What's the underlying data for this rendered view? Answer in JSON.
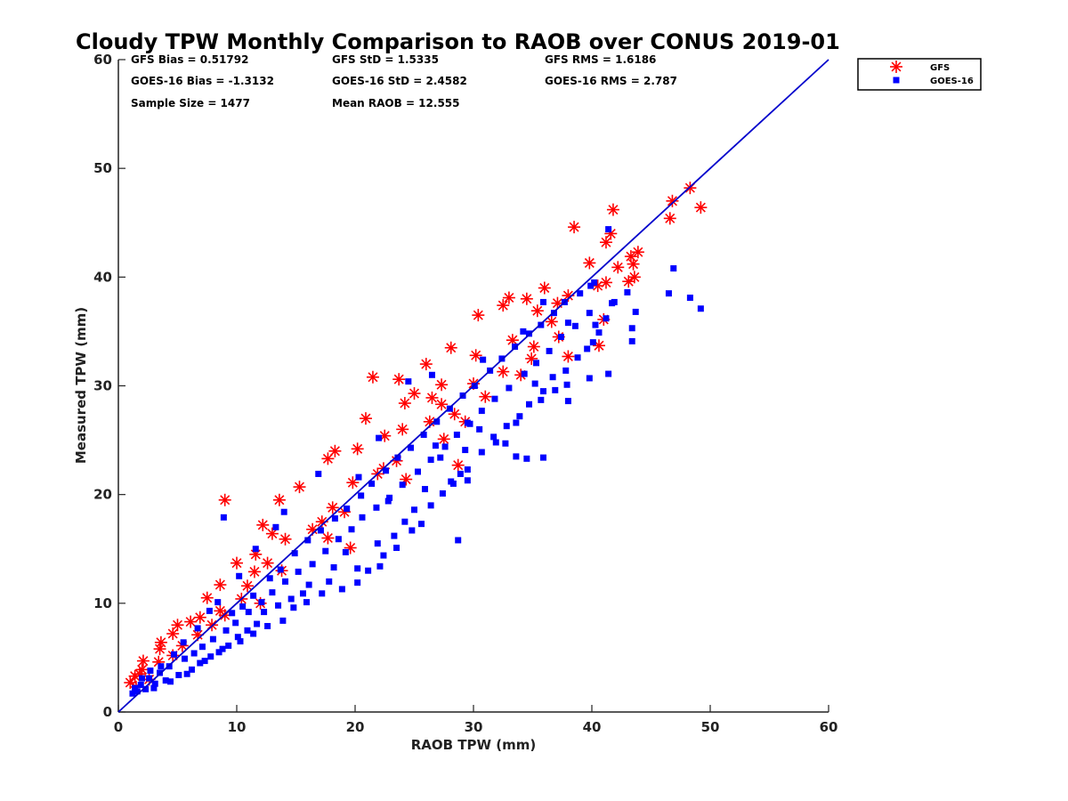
{
  "chart_data": {
    "type": "scatter",
    "title": "Cloudy TPW Monthly Comparison to RAOB over CONUS 2019-01",
    "xlabel": "RAOB TPW (mm)",
    "ylabel": "Measured TPW (mm)",
    "xlim": [
      0,
      60
    ],
    "ylim": [
      0,
      60
    ],
    "xticks": [
      "0",
      "10",
      "20",
      "30",
      "40",
      "50",
      "60"
    ],
    "yticks": [
      "0",
      "10",
      "20",
      "30",
      "40",
      "50",
      "60"
    ],
    "grid": false,
    "legend_position": "top-right",
    "stats": {
      "gfs_bias": "GFS Bias = 0.51792",
      "gfs_std": "GFS StD = 1.5335",
      "gfs_rms": "GFS RMS = 1.6186",
      "goes_bias": "GOES-16 Bias = -1.3132",
      "goes_std": "GOES-16 StD = 2.4582",
      "goes_rms": "GOES-16 RMS = 2.787",
      "sample_size": "Sample Size = 1477",
      "mean_raob": "Mean RAOB = 12.555"
    },
    "reference_line": {
      "label": "1:1 line",
      "color": "#0000cc",
      "x": [
        0,
        60
      ],
      "y": [
        0,
        60
      ]
    },
    "series": [
      {
        "name": "GFS",
        "marker": "asterisk",
        "color": "#ff0000",
        "points": [
          [
            48.3,
            48.2
          ],
          [
            46.8,
            47.0
          ],
          [
            46.6,
            45.4
          ],
          [
            49.2,
            46.4
          ],
          [
            41.8,
            46.2
          ],
          [
            38.5,
            44.6
          ],
          [
            41.6,
            44.0
          ],
          [
            41.2,
            43.2
          ],
          [
            43.9,
            42.3
          ],
          [
            43.3,
            41.9
          ],
          [
            39.8,
            41.3
          ],
          [
            43.5,
            41.2
          ],
          [
            42.2,
            40.9
          ],
          [
            43.6,
            40.0
          ],
          [
            41.2,
            39.5
          ],
          [
            40.5,
            39.2
          ],
          [
            43.1,
            39.6
          ],
          [
            36.0,
            39.0
          ],
          [
            38.0,
            38.3
          ],
          [
            33.0,
            38.1
          ],
          [
            34.5,
            38.0
          ],
          [
            32.5,
            37.4
          ],
          [
            37.1,
            37.6
          ],
          [
            35.4,
            36.9
          ],
          [
            30.4,
            36.5
          ],
          [
            36.6,
            35.9
          ],
          [
            41.0,
            36.1
          ],
          [
            37.2,
            34.5
          ],
          [
            33.3,
            34.2
          ],
          [
            35.1,
            33.6
          ],
          [
            40.6,
            33.7
          ],
          [
            38.0,
            32.7
          ],
          [
            28.1,
            33.5
          ],
          [
            30.2,
            32.8
          ],
          [
            34.9,
            32.5
          ],
          [
            26.0,
            32.0
          ],
          [
            32.5,
            31.3
          ],
          [
            34.0,
            31.0
          ],
          [
            23.7,
            30.6
          ],
          [
            21.5,
            30.8
          ],
          [
            27.3,
            30.1
          ],
          [
            30.0,
            30.2
          ],
          [
            24.2,
            28.4
          ],
          [
            25.0,
            29.3
          ],
          [
            31.0,
            29.0
          ],
          [
            26.5,
            28.9
          ],
          [
            27.3,
            28.3
          ],
          [
            28.4,
            27.4
          ],
          [
            29.3,
            26.7
          ],
          [
            20.9,
            27.0
          ],
          [
            26.3,
            26.7
          ],
          [
            24.0,
            26.0
          ],
          [
            22.5,
            25.4
          ],
          [
            27.5,
            25.1
          ],
          [
            20.2,
            24.2
          ],
          [
            18.3,
            24.0
          ],
          [
            23.5,
            23.1
          ],
          [
            17.7,
            23.3
          ],
          [
            28.7,
            22.7
          ],
          [
            22.4,
            22.4
          ],
          [
            21.9,
            21.9
          ],
          [
            19.8,
            21.1
          ],
          [
            24.3,
            21.4
          ],
          [
            15.3,
            20.7
          ],
          [
            9.0,
            19.5
          ],
          [
            13.6,
            19.5
          ],
          [
            18.1,
            18.8
          ],
          [
            19.1,
            18.4
          ],
          [
            17.2,
            17.5
          ],
          [
            12.2,
            17.2
          ],
          [
            16.4,
            16.8
          ],
          [
            13.0,
            16.4
          ],
          [
            17.7,
            16.0
          ],
          [
            14.1,
            15.9
          ],
          [
            19.6,
            15.1
          ],
          [
            11.6,
            14.5
          ],
          [
            10.0,
            13.7
          ],
          [
            12.6,
            13.7
          ],
          [
            13.8,
            13.0
          ],
          [
            11.5,
            12.9
          ],
          [
            8.6,
            11.7
          ],
          [
            10.9,
            11.6
          ],
          [
            7.5,
            10.5
          ],
          [
            10.4,
            10.4
          ],
          [
            12.0,
            10.0
          ],
          [
            8.6,
            9.3
          ],
          [
            6.9,
            8.7
          ],
          [
            9.0,
            8.9
          ],
          [
            6.1,
            8.3
          ],
          [
            5.0,
            8.0
          ],
          [
            7.9,
            8.0
          ],
          [
            4.6,
            7.2
          ],
          [
            6.7,
            7.1
          ],
          [
            3.6,
            6.4
          ],
          [
            5.4,
            6.1
          ],
          [
            3.5,
            5.8
          ],
          [
            4.6,
            5.2
          ],
          [
            2.1,
            4.7
          ],
          [
            3.4,
            4.6
          ],
          [
            2.0,
            3.9
          ],
          [
            1.8,
            3.5
          ],
          [
            1.4,
            3.3
          ],
          [
            1.0,
            2.7
          ],
          [
            2.6,
            3.0
          ],
          [
            1.5,
            2.3
          ]
        ]
      },
      {
        "name": "GOES-16",
        "marker": "square",
        "color": "#0000ff",
        "points": [
          [
            41.4,
            44.4
          ],
          [
            46.9,
            40.8
          ],
          [
            46.5,
            38.5
          ],
          [
            48.3,
            38.1
          ],
          [
            49.2,
            37.1
          ],
          [
            43.0,
            38.6
          ],
          [
            43.7,
            36.8
          ],
          [
            41.2,
            36.2
          ],
          [
            41.7,
            37.6
          ],
          [
            40.2,
            39.5
          ],
          [
            43.4,
            35.3
          ],
          [
            43.4,
            34.1
          ],
          [
            40.1,
            34.0
          ],
          [
            40.6,
            34.9
          ],
          [
            39.8,
            30.7
          ],
          [
            41.4,
            31.1
          ],
          [
            38.0,
            28.6
          ],
          [
            37.9,
            30.1
          ],
          [
            38.0,
            35.8
          ],
          [
            36.9,
            29.6
          ],
          [
            35.7,
            28.7
          ],
          [
            35.2,
            30.2
          ],
          [
            35.9,
            23.4
          ],
          [
            34.5,
            23.3
          ],
          [
            33.6,
            23.5
          ],
          [
            32.7,
            24.7
          ],
          [
            31.7,
            25.3
          ],
          [
            33.6,
            26.6
          ],
          [
            30.5,
            26.0
          ],
          [
            29.5,
            26.6
          ],
          [
            29.3,
            24.1
          ],
          [
            28.9,
            21.9
          ],
          [
            29.5,
            21.3
          ],
          [
            28.1,
            21.2
          ],
          [
            28.7,
            15.8
          ],
          [
            27.2,
            23.4
          ],
          [
            26.8,
            24.5
          ],
          [
            25.9,
            20.5
          ],
          [
            25.0,
            18.6
          ],
          [
            24.2,
            17.5
          ],
          [
            22.8,
            19.4
          ],
          [
            23.3,
            16.2
          ],
          [
            21.9,
            15.5
          ],
          [
            22.1,
            13.4
          ],
          [
            20.2,
            13.2
          ],
          [
            19.2,
            14.7
          ],
          [
            18.2,
            13.3
          ],
          [
            17.8,
            12.0
          ],
          [
            16.1,
            11.7
          ],
          [
            15.6,
            10.9
          ],
          [
            14.6,
            10.4
          ],
          [
            13.5,
            9.8
          ],
          [
            12.3,
            9.2
          ],
          [
            11.7,
            8.1
          ],
          [
            10.9,
            7.5
          ],
          [
            10.1,
            6.9
          ],
          [
            9.3,
            6.1
          ],
          [
            8.5,
            5.5
          ],
          [
            7.3,
            4.7
          ],
          [
            6.2,
            3.9
          ],
          [
            5.1,
            3.4
          ],
          [
            4.0,
            2.9
          ],
          [
            3.1,
            2.6
          ],
          [
            2.3,
            2.1
          ],
          [
            1.6,
            1.9
          ],
          [
            1.2,
            1.7
          ],
          [
            1.9,
            2.5
          ],
          [
            2.6,
            3.1
          ],
          [
            3.5,
            3.6
          ],
          [
            4.3,
            4.2
          ],
          [
            5.6,
            4.9
          ],
          [
            6.4,
            5.4
          ],
          [
            7.1,
            6.0
          ],
          [
            8.0,
            6.7
          ],
          [
            9.1,
            7.5
          ],
          [
            9.9,
            8.2
          ],
          [
            11.0,
            9.2
          ],
          [
            12.1,
            10.1
          ],
          [
            13.0,
            11.0
          ],
          [
            14.1,
            12.0
          ],
          [
            15.2,
            12.9
          ],
          [
            16.4,
            13.6
          ],
          [
            17.5,
            14.8
          ],
          [
            18.6,
            15.9
          ],
          [
            19.7,
            16.8
          ],
          [
            20.6,
            17.9
          ],
          [
            21.8,
            18.8
          ],
          [
            22.9,
            19.7
          ],
          [
            24.0,
            20.9
          ],
          [
            25.3,
            22.1
          ],
          [
            26.4,
            23.2
          ],
          [
            27.6,
            24.4
          ],
          [
            28.6,
            25.5
          ],
          [
            29.7,
            26.5
          ],
          [
            30.7,
            27.7
          ],
          [
            31.8,
            28.8
          ],
          [
            33.0,
            29.8
          ],
          [
            34.3,
            31.1
          ],
          [
            35.3,
            32.1
          ],
          [
            36.4,
            33.2
          ],
          [
            37.4,
            34.5
          ],
          [
            38.6,
            35.5
          ],
          [
            39.8,
            36.7
          ],
          [
            8.9,
            17.9
          ],
          [
            9.6,
            9.1
          ],
          [
            10.5,
            9.7
          ],
          [
            11.4,
            10.7
          ],
          [
            12.8,
            12.3
          ],
          [
            13.7,
            13.1
          ],
          [
            14.9,
            14.6
          ],
          [
            16.0,
            15.8
          ],
          [
            17.1,
            16.7
          ],
          [
            18.3,
            17.8
          ],
          [
            19.3,
            18.7
          ],
          [
            20.5,
            19.9
          ],
          [
            21.4,
            21.0
          ],
          [
            22.6,
            22.2
          ],
          [
            23.6,
            23.4
          ],
          [
            24.7,
            24.3
          ],
          [
            25.8,
            25.5
          ],
          [
            26.9,
            26.7
          ],
          [
            28.0,
            27.9
          ],
          [
            29.1,
            29.1
          ],
          [
            30.1,
            30.0
          ],
          [
            31.4,
            31.4
          ],
          [
            32.4,
            32.5
          ],
          [
            33.5,
            33.6
          ],
          [
            34.7,
            34.8
          ],
          [
            35.7,
            35.6
          ],
          [
            36.8,
            36.7
          ],
          [
            37.7,
            37.7
          ],
          [
            39.0,
            38.5
          ],
          [
            24.5,
            30.4
          ],
          [
            26.5,
            31.0
          ],
          [
            30.8,
            32.4
          ],
          [
            34.2,
            35.0
          ],
          [
            35.9,
            37.7
          ],
          [
            39.9,
            39.2
          ],
          [
            20.3,
            21.6
          ],
          [
            22.0,
            25.2
          ],
          [
            16.9,
            21.9
          ],
          [
            13.3,
            17.0
          ],
          [
            14.0,
            18.4
          ],
          [
            11.6,
            15.0
          ],
          [
            10.2,
            12.5
          ],
          [
            8.4,
            10.1
          ],
          [
            7.7,
            9.3
          ],
          [
            6.7,
            7.7
          ],
          [
            5.5,
            6.4
          ],
          [
            4.7,
            5.3
          ],
          [
            3.6,
            4.2
          ],
          [
            2.7,
            3.8
          ],
          [
            2.0,
            3.1
          ],
          [
            1.4,
            2.2
          ],
          [
            3.0,
            2.2
          ],
          [
            4.4,
            2.8
          ],
          [
            5.8,
            3.5
          ],
          [
            6.9,
            4.5
          ],
          [
            7.8,
            5.1
          ],
          [
            8.8,
            5.8
          ],
          [
            10.3,
            6.5
          ],
          [
            11.4,
            7.2
          ],
          [
            12.6,
            7.9
          ],
          [
            13.9,
            8.4
          ],
          [
            14.8,
            9.6
          ],
          [
            15.9,
            10.1
          ],
          [
            17.2,
            10.9
          ],
          [
            18.9,
            11.3
          ],
          [
            20.2,
            11.9
          ],
          [
            21.1,
            13.0
          ],
          [
            22.4,
            14.4
          ],
          [
            23.5,
            15.1
          ],
          [
            24.8,
            16.7
          ],
          [
            25.6,
            17.3
          ],
          [
            26.4,
            19.0
          ],
          [
            27.4,
            20.1
          ],
          [
            28.3,
            21.0
          ],
          [
            29.5,
            22.3
          ],
          [
            30.7,
            23.9
          ],
          [
            31.9,
            24.8
          ],
          [
            32.8,
            26.3
          ],
          [
            33.9,
            27.2
          ],
          [
            34.7,
            28.3
          ],
          [
            35.9,
            29.5
          ],
          [
            36.7,
            30.8
          ],
          [
            37.8,
            31.4
          ],
          [
            38.8,
            32.6
          ],
          [
            39.6,
            33.4
          ],
          [
            40.3,
            35.6
          ],
          [
            41.9,
            37.7
          ]
        ]
      }
    ]
  }
}
